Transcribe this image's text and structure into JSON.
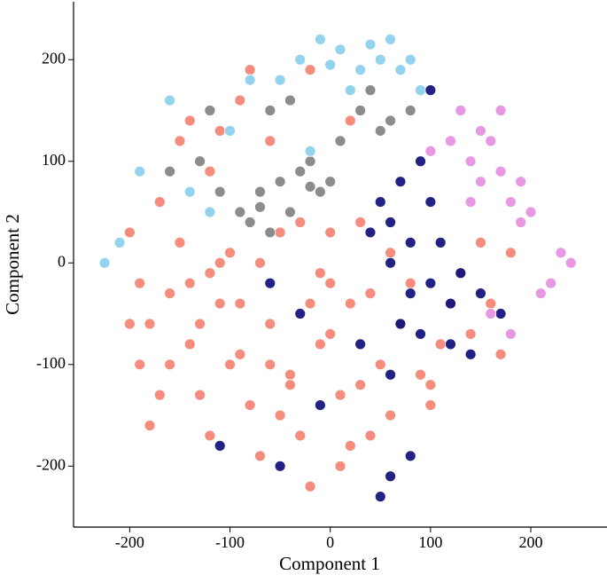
{
  "chart_data": {
    "type": "scatter",
    "xlabel": "Component 1",
    "ylabel": "Component 2",
    "xlim": [
      -256,
      276
    ],
    "ylim": [
      -260,
      257
    ],
    "xticks": [
      -200,
      -100,
      0,
      100,
      200
    ],
    "yticks": [
      -200,
      -100,
      0,
      100,
      200
    ],
    "series": [
      {
        "color": "#f4806f",
        "x": [
          -200,
          -190,
          -180,
          -190,
          -170,
          -160,
          -150,
          -140,
          -130,
          -120,
          -110,
          -100,
          -90,
          -80,
          -70,
          -60,
          -50,
          -40,
          -30,
          -20,
          -10,
          0,
          10,
          20,
          30,
          40,
          50,
          60,
          70,
          80,
          90,
          100,
          110,
          120,
          130,
          140,
          150,
          160,
          170,
          180,
          -150,
          -140,
          -120,
          -110,
          -90,
          -80,
          -60,
          -20,
          20,
          -30,
          -70,
          0,
          -120,
          -170,
          -100,
          -50,
          10,
          40,
          -180,
          -140,
          -60,
          -20,
          20,
          -200,
          -130,
          -90,
          -40,
          0,
          60,
          100,
          -160,
          -110,
          -10,
          30
        ],
        "y": [
          30,
          -20,
          -60,
          -100,
          -130,
          -30,
          20,
          -80,
          -130,
          -170,
          -40,
          10,
          -90,
          -140,
          -190,
          -60,
          30,
          -110,
          -170,
          -220,
          -10,
          -70,
          -130,
          -180,
          40,
          -30,
          -100,
          -150,
          -60,
          -20,
          -110,
          -140,
          -80,
          -40,
          -10,
          -70,
          20,
          -40,
          -90,
          10,
          120,
          140,
          90,
          130,
          160,
          190,
          120,
          190,
          140,
          40,
          0,
          30,
          -10,
          60,
          -100,
          -150,
          -200,
          -170,
          -160,
          -20,
          -100,
          -40,
          -40,
          -60,
          -60,
          -40,
          -120,
          -20,
          10,
          -120,
          -100,
          0,
          -80,
          -120
        ]
      },
      {
        "color": "#808080",
        "x": [
          -90,
          -70,
          -50,
          -30,
          -10,
          -40,
          -80,
          -20,
          10,
          30,
          40,
          60,
          80,
          -40,
          -60,
          -120,
          -130,
          -160,
          -110,
          50,
          0,
          -60,
          -20,
          -70
        ],
        "y": [
          50,
          70,
          80,
          90,
          70,
          50,
          40,
          100,
          120,
          150,
          170,
          140,
          150,
          160,
          150,
          150,
          100,
          90,
          70,
          130,
          80,
          30,
          75,
          55
        ]
      },
      {
        "color": "#87ceeb",
        "x": [
          -30,
          -10,
          10,
          30,
          50,
          70,
          90,
          -80,
          -100,
          -190,
          -225,
          -210,
          -160,
          -140,
          20,
          60,
          -20,
          40,
          -50,
          80,
          -120,
          0
        ],
        "y": [
          200,
          220,
          210,
          190,
          200,
          190,
          170,
          180,
          130,
          90,
          0,
          20,
          160,
          70,
          170,
          220,
          110,
          215,
          180,
          200,
          50,
          195
        ]
      },
      {
        "color": "#0a0a78",
        "x": [
          50,
          60,
          70,
          90,
          100,
          40,
          60,
          80,
          70,
          100,
          110,
          120,
          130,
          150,
          170,
          90,
          -30,
          -60,
          30,
          -10,
          80,
          60,
          50,
          -110,
          -50,
          140,
          100,
          120,
          80,
          60
        ],
        "y": [
          60,
          40,
          80,
          100,
          170,
          30,
          0,
          -30,
          -60,
          -20,
          20,
          -40,
          -10,
          -30,
          -50,
          -70,
          -50,
          -20,
          -80,
          -140,
          -190,
          -210,
          -230,
          -180,
          -200,
          -90,
          60,
          -80,
          20,
          -110
        ]
      },
      {
        "color": "#e58ce0",
        "x": [
          120,
          130,
          140,
          150,
          160,
          170,
          180,
          200,
          140,
          150,
          170,
          190,
          230,
          220,
          240,
          210,
          180,
          160,
          100,
          190
        ],
        "y": [
          120,
          150,
          100,
          80,
          120,
          90,
          60,
          50,
          60,
          130,
          150,
          80,
          10,
          -20,
          0,
          -30,
          -70,
          -50,
          110,
          40
        ]
      }
    ]
  }
}
